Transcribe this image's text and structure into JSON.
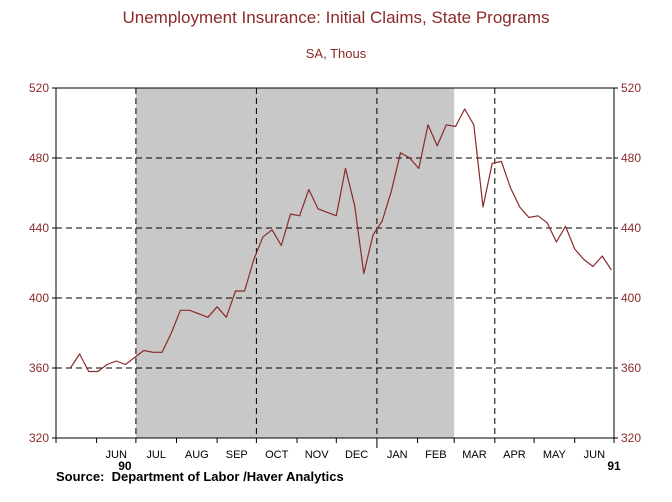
{
  "chart_data": {
    "type": "line",
    "title": "Unemployment Insurance: Initial Claims, State Programs",
    "subtitle": "SA, Thous",
    "source": "Source:  Department of Labor /Haver Analytics",
    "ylim": [
      320,
      520
    ],
    "y_ticks": [
      320,
      360,
      400,
      440,
      480,
      520
    ],
    "y_tick_labels": [
      "320",
      "360",
      "400",
      "440",
      "480",
      "520"
    ],
    "x_month_labels": [
      "JUN",
      "JUL",
      "AUG",
      "SEP",
      "OCT",
      "NOV",
      "DEC",
      "JAN",
      "FEB",
      "MAR",
      "APR",
      "MAY",
      "JUN"
    ],
    "x_year_labels": [
      "90",
      "91"
    ],
    "recession_shading": {
      "start": "1990-07",
      "end": "1991-03"
    },
    "grid": "dashed",
    "colors": {
      "series": "#8b2a2a",
      "text": "#8b2a2a",
      "shade": "#c8c8c8"
    },
    "series": [
      {
        "x": [
          "1990-05-12",
          "1990-05-19",
          "1990-05-26",
          "1990-06-02",
          "1990-06-09",
          "1990-06-16",
          "1990-06-23",
          "1990-06-30",
          "1990-07-07",
          "1990-07-14",
          "1990-07-21",
          "1990-07-28",
          "1990-08-04",
          "1990-08-11",
          "1990-08-18",
          "1990-08-25",
          "1990-09-01",
          "1990-09-08",
          "1990-09-15",
          "1990-09-22",
          "1990-09-29",
          "1990-10-06",
          "1990-10-13",
          "1990-10-20",
          "1990-10-27",
          "1990-11-03",
          "1990-11-10",
          "1990-11-17",
          "1990-11-24",
          "1990-12-01",
          "1990-12-08",
          "1990-12-15",
          "1990-12-22",
          "1990-12-29",
          "1991-01-05",
          "1991-01-12",
          "1991-01-19",
          "1991-01-26",
          "1991-02-02",
          "1991-02-09",
          "1991-02-16",
          "1991-02-23",
          "1991-03-02",
          "1991-03-09",
          "1991-03-16",
          "1991-03-23",
          "1991-03-30",
          "1991-04-06",
          "1991-04-13",
          "1991-04-20",
          "1991-04-27",
          "1991-05-04",
          "1991-05-11",
          "1991-05-18",
          "1991-05-25",
          "1991-06-01",
          "1991-06-08",
          "1991-06-15",
          "1991-06-22",
          "1991-06-29"
        ],
        "values": [
          360,
          368,
          358,
          358,
          362,
          364,
          362,
          366,
          370,
          369,
          369,
          380,
          393,
          393,
          391,
          389,
          395,
          389,
          404,
          404,
          422,
          435,
          439,
          430,
          448,
          447,
          462,
          451,
          449,
          447,
          474,
          453,
          414,
          436,
          444,
          461,
          483,
          480,
          474,
          499,
          487,
          499,
          498,
          508,
          499,
          452,
          477,
          478,
          463,
          452,
          446,
          447,
          443,
          432,
          441,
          428,
          422,
          418,
          424,
          416
        ]
      }
    ]
  }
}
